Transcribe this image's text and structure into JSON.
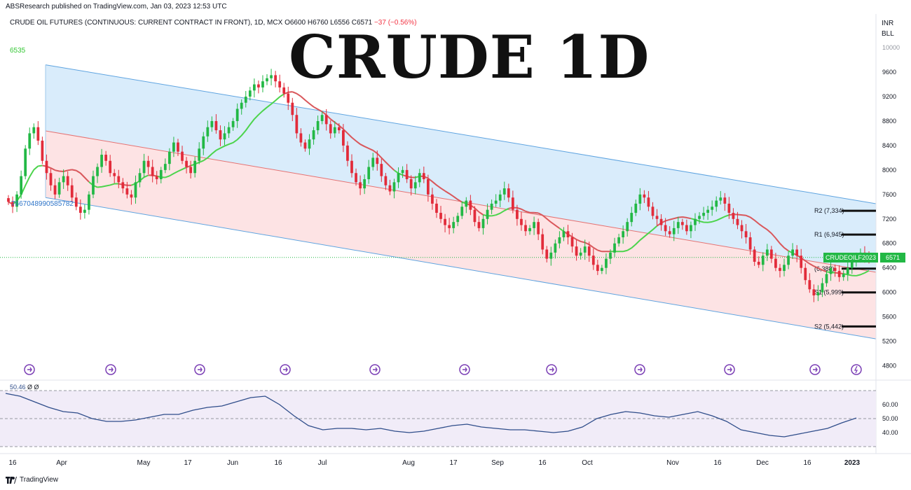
{
  "header": {
    "publisher": "ABSResearch published on TradingView.com, Jan 03, 2023 12:53 UTC",
    "symbol_desc": "CRUDE OIL FUTURES (CONTINUOUS: CURRENT CONTRACT IN FRONT), 1D, MCX",
    "ohlc": {
      "o": "O6600",
      "h": "H6760",
      "l": "L6556",
      "c": "C6571",
      "chg": "−37 (−0.56%)"
    },
    "ma_value": "6535",
    "overlay_title": "CRUDE 1D",
    "currency": "INR",
    "unit": "BLL"
  },
  "regression_label": "7667048990585782",
  "last_price": {
    "symbol": "CRUDEOILF2023",
    "value": "6571"
  },
  "rsi": {
    "label": "50.46",
    "extra": "Ø Ø"
  },
  "footer": {
    "brand": "TradingView"
  },
  "colors": {
    "up": "#22b845",
    "down": "#e22b3a",
    "ma_fast": "#4cd44c",
    "ma_slow": "#d9575b",
    "rsi": "#2f4d8a",
    "channel_upper": "#d7ebfb",
    "channel_lower": "#fde1e3"
  },
  "chart_data": [
    {
      "type": "candlestick",
      "title": "CRUDE 1D",
      "x_tick_labels": [
        "16",
        "Apr",
        "May",
        "17",
        "Jun",
        "16",
        "Jul",
        "Aug",
        "17",
        "Sep",
        "16",
        "Oct",
        "Nov",
        "16",
        "Dec",
        "16",
        "2023"
      ],
      "y_tick_labels": [
        "4800",
        "5200",
        "5600",
        "6000",
        "6400",
        "6800",
        "7200",
        "7600",
        "8000",
        "8400",
        "8800",
        "9200",
        "9600",
        "10000"
      ],
      "ylim": [
        4600,
        10150
      ],
      "levels": [
        {
          "name": "R2",
          "label": "R2 (7,334)",
          "value": 7334
        },
        {
          "name": "R1",
          "label": "R1 (6,945)",
          "value": 6945
        },
        {
          "name": "P",
          "label": "(6,388)",
          "value": 6388
        },
        {
          "name": "S1",
          "label": "S1 (5,999)",
          "value": 5999
        },
        {
          "name": "S2",
          "label": "S2 (5,442)",
          "value": 5442
        }
      ],
      "regression_channel": {
        "upper": [
          9720,
          7450
        ],
        "middle": [
          8640,
          6330
        ],
        "lower": [
          7550,
          5240
        ]
      },
      "closes": [
        7480,
        7400,
        7600,
        7900,
        8350,
        8600,
        8700,
        8480,
        8150,
        7950,
        7750,
        7600,
        7800,
        7900,
        7750,
        7550,
        7400,
        7300,
        7350,
        7600,
        7900,
        8050,
        8250,
        8150,
        7950,
        7900,
        7800,
        7700,
        7600,
        7550,
        7800,
        7950,
        8150,
        8050,
        7900,
        7850,
        8000,
        8100,
        8300,
        8450,
        8300,
        8150,
        8050,
        7950,
        8150,
        8350,
        8550,
        8700,
        8800,
        8650,
        8500,
        8600,
        8700,
        8800,
        9000,
        9100,
        9200,
        9300,
        9400,
        9350,
        9450,
        9500,
        9550,
        9450,
        9350,
        9250,
        9100,
        8900,
        8600,
        8450,
        8350,
        8500,
        8650,
        8800,
        8900,
        8750,
        8600,
        8700,
        8650,
        8400,
        8150,
        7950,
        7800,
        7700,
        7850,
        8050,
        8200,
        8100,
        7900,
        7750,
        7650,
        7800,
        7950,
        8000,
        7850,
        7700,
        7800,
        7950,
        7850,
        7600,
        7450,
        7300,
        7200,
        7100,
        7050,
        7150,
        7250,
        7400,
        7500,
        7350,
        7150,
        7050,
        7200,
        7350,
        7450,
        7500,
        7600,
        7700,
        7550,
        7350,
        7200,
        7100,
        7000,
        7050,
        7150,
        6950,
        6700,
        6550,
        6650,
        6800,
        6900,
        7000,
        6900,
        6750,
        6600,
        6650,
        6750,
        6600,
        6450,
        6350,
        6400,
        6550,
        6650,
        6800,
        6900,
        7000,
        7150,
        7300,
        7450,
        7600,
        7550,
        7400,
        7250,
        7200,
        7100,
        7000,
        6950,
        7050,
        7150,
        7100,
        7000,
        7100,
        7200,
        7250,
        7300,
        7350,
        7400,
        7500,
        7550,
        7450,
        7300,
        7200,
        7100,
        7000,
        6900,
        6700,
        6500,
        6450,
        6600,
        6700,
        6550,
        6400,
        6350,
        6450,
        6600,
        6700,
        6600,
        6400,
        6200,
        6050,
        5950,
        6000,
        6150,
        6300,
        6400,
        6350,
        6250,
        6300,
        6400,
        6500,
        6550,
        6650,
        6600,
        6571
      ],
      "ma_fast_end": 6535
    },
    {
      "type": "line",
      "title": "",
      "y_tick_labels": [
        "40.00",
        "50.00",
        "60.00"
      ],
      "ylim": [
        29,
        73
      ],
      "guides": [
        70,
        50,
        30
      ],
      "values": [
        68,
        66,
        62,
        58,
        55,
        54,
        50,
        48,
        48,
        49,
        51,
        53,
        53,
        56,
        58,
        59,
        62,
        65,
        66,
        60,
        52,
        45,
        42,
        43,
        43,
        42,
        43,
        41,
        40,
        41,
        43,
        45,
        46,
        44,
        43,
        42,
        42,
        41,
        40,
        41,
        44,
        50,
        53,
        55,
        54,
        52,
        51,
        53,
        55,
        52,
        48,
        42,
        40,
        38,
        37,
        39,
        41,
        43,
        47,
        50.46
      ]
    }
  ]
}
